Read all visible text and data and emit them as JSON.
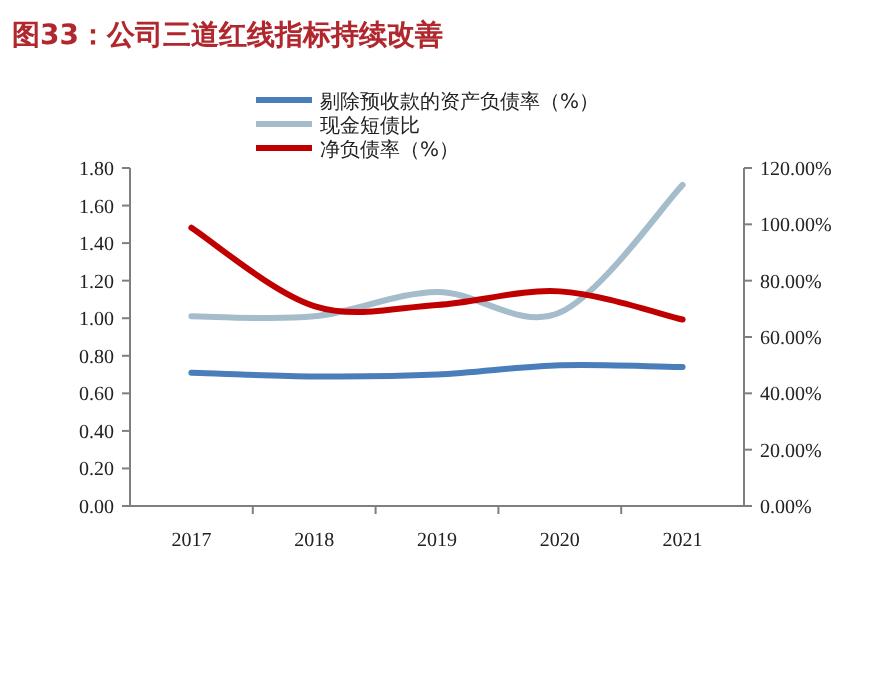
{
  "chart_data": {
    "type": "line",
    "title": "图33：公司三道红线指标持续改善",
    "categories": [
      "2017",
      "2018",
      "2019",
      "2020",
      "2021"
    ],
    "series": [
      {
        "name": "剔除预收款的资产负债率（%）",
        "color": "#4a7ebb",
        "values": [
          0.71,
          0.69,
          0.7,
          0.75,
          0.74
        ]
      },
      {
        "name": "现金短债比",
        "color": "#a5bccb",
        "values": [
          1.01,
          1.01,
          1.14,
          1.03,
          1.71
        ]
      },
      {
        "name": "净负债率（%）",
        "color": "#c00000",
        "values": [
          98.8,
          71.0,
          71.4,
          76.2,
          66.2
        ],
        "axis": "y2"
      }
    ],
    "ylim": [
      0,
      1.8
    ],
    "yticks": [
      {
        "value": 0,
        "label": "0.00"
      },
      {
        "value": 0.2,
        "label": "0.20"
      },
      {
        "value": 0.4,
        "label": "0.40"
      },
      {
        "value": 0.6,
        "label": "0.60"
      },
      {
        "value": 0.8,
        "label": "0.80"
      },
      {
        "value": 1,
        "label": "1.00"
      },
      {
        "value": 1.2,
        "label": "1.20"
      },
      {
        "value": 1.4,
        "label": "1.40"
      },
      {
        "value": 1.6,
        "label": "1.60"
      },
      {
        "value": 1.8,
        "label": "1.80"
      }
    ],
    "y2lim": [
      0,
      120
    ],
    "y2ticks": [
      {
        "value": 0,
        "label": "0.00%"
      },
      {
        "value": 20,
        "label": "20.00%"
      },
      {
        "value": 40,
        "label": "40.00%"
      },
      {
        "value": 60,
        "label": "60.00%"
      },
      {
        "value": 80,
        "label": "80.00%"
      },
      {
        "value": 100,
        "label": "100.00%"
      },
      {
        "value": 120,
        "label": "120.00%"
      }
    ],
    "legend": "top",
    "grid": false,
    "marker": "none",
    "line_style": "solid"
  }
}
